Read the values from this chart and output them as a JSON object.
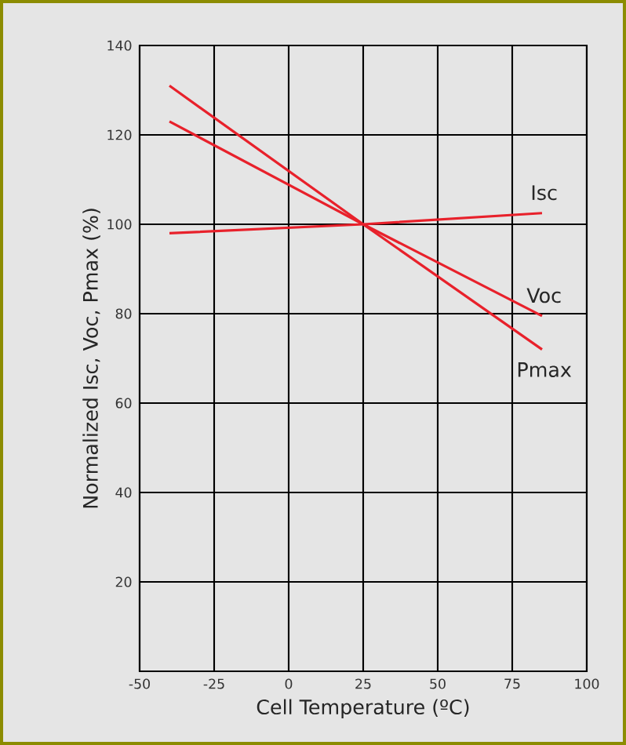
{
  "chart_data": {
    "type": "line",
    "xlabel": "Cell Temperature (ºC)",
    "ylabel": "Normalized Isc, Voc, Pmax (%)",
    "xlim": [
      -50,
      100
    ],
    "xticks": [
      -50,
      -25,
      0,
      25,
      50,
      75,
      100
    ],
    "ylim": [
      0,
      140
    ],
    "yticks": [
      20,
      40,
      60,
      80,
      100,
      120,
      140
    ],
    "grid": true,
    "legend": false,
    "marker": "none",
    "line_style": "solid",
    "series": [
      {
        "name": "Isc",
        "color": "#e8212b",
        "x": [
          -40,
          25,
          85
        ],
        "values": [
          98,
          100,
          102.5
        ]
      },
      {
        "name": "Voc",
        "color": "#e8212b",
        "x": [
          -40,
          25,
          85
        ],
        "values": [
          123,
          100,
          79.5
        ]
      },
      {
        "name": "Pmax",
        "color": "#e8212b",
        "x": [
          -40,
          25,
          85
        ],
        "values": [
          131,
          100,
          72
        ]
      }
    ]
  }
}
